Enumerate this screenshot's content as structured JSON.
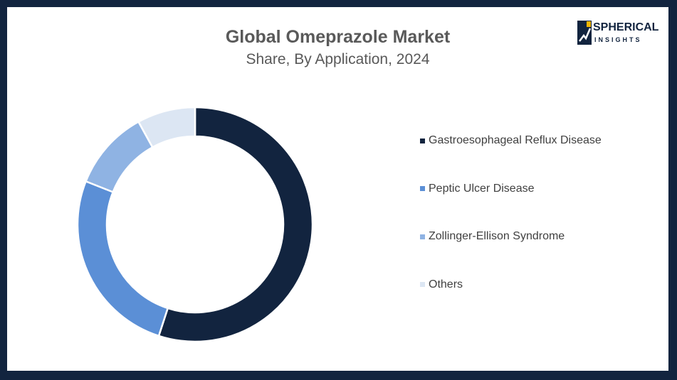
{
  "header": {
    "title": "Global Omeprazole Market",
    "subtitle": "Share, By Application, 2024"
  },
  "logo": {
    "line1": "SPHERICAL",
    "line2": "INSIGHTS",
    "icon": "spherical-insights-logo-icon"
  },
  "chart_data": {
    "type": "pie",
    "title": "Global Omeprazole Market",
    "subtitle": "Share, By Application, 2024",
    "categories": [
      "Gastroesophageal Reflux Disease",
      "Peptic Ulcer Disease",
      "Zollinger-Ellison Syndrome",
      "Others"
    ],
    "values": [
      55,
      26,
      11,
      8
    ],
    "colors": [
      "#12243f",
      "#5b8fd6",
      "#8fb3e3",
      "#dce6f3"
    ],
    "legend_position": "right"
  }
}
